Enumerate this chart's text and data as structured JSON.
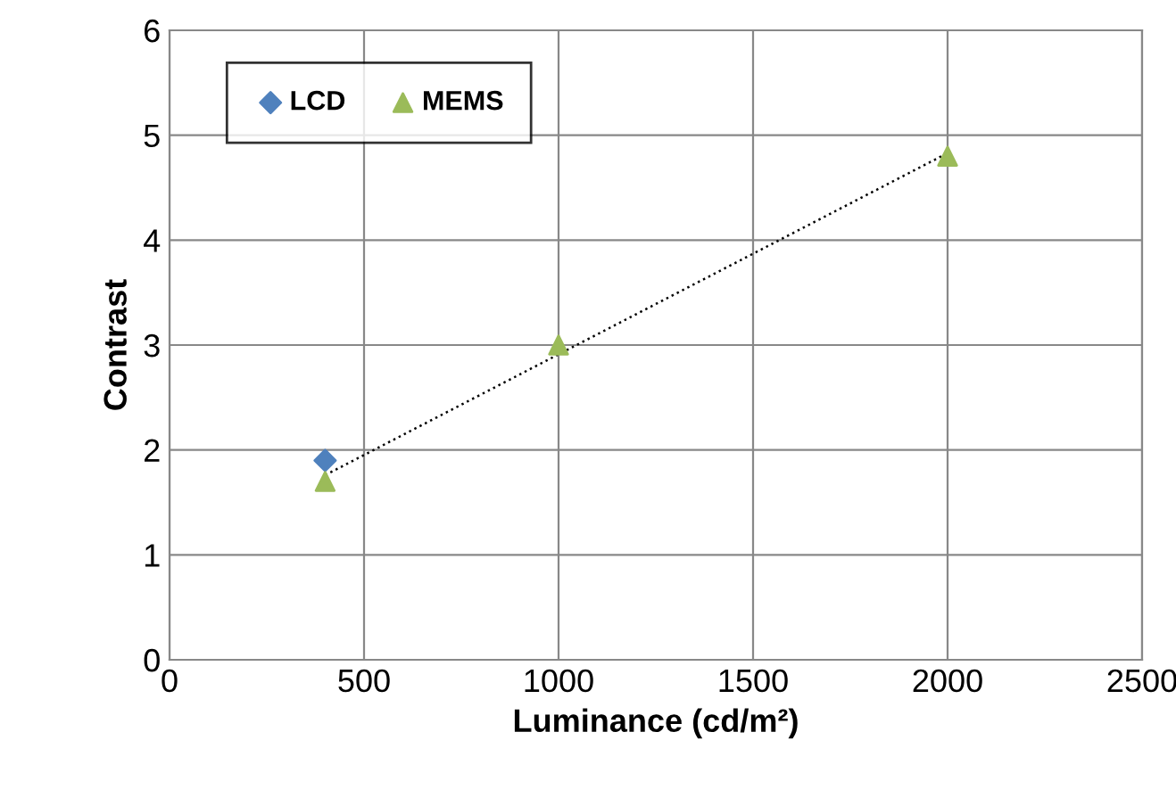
{
  "chart_data": {
    "type": "scatter",
    "xlabel": "Luminance (cd/m²)",
    "ylabel": "Contrast",
    "xlim": [
      0,
      2500
    ],
    "xticks": [
      0,
      500,
      1000,
      1500,
      2000,
      2500
    ],
    "ylim": [
      0,
      6
    ],
    "yticks": [
      0,
      1,
      2,
      3,
      4,
      5,
      6
    ],
    "grid": true,
    "legend": "top left",
    "series": [
      {
        "name": "LCD",
        "color": "#4f81bd",
        "marker": "diamond",
        "x": [
          400
        ],
        "values": [
          1.9
        ]
      },
      {
        "name": "MEMS",
        "color": "#9bbb59",
        "marker": "triangle",
        "x": [
          400,
          1000,
          2000
        ],
        "values": [
          1.7,
          3.0,
          4.8
        ]
      },
      {
        "type": "line",
        "color": "#000000",
        "line_style": "dotted",
        "marker": "none",
        "x": [
          400,
          2000
        ],
        "values": [
          1.76,
          4.83
        ]
      }
    ]
  }
}
